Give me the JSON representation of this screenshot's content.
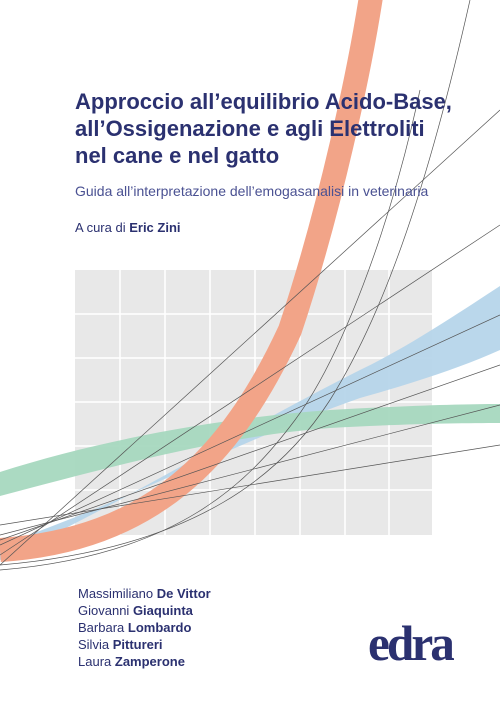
{
  "book": {
    "title_lines": [
      "Approccio all’equilibrio Acido-Base,",
      "all’Ossigenazione e agli Elettroliti",
      "nel cane e nel gatto"
    ],
    "subtitle": "Guida all’interpretazione dell’emogasanalisi in veterinaria",
    "editor_prefix": "A cura di",
    "editor_name": "Eric Zini"
  },
  "authors": [
    {
      "first": "Massimiliano",
      "last": "De Vittor"
    },
    {
      "first": "Giovanni",
      "last": "Giaquinta"
    },
    {
      "first": "Barbara",
      "last": "Lombardo"
    },
    {
      "first": "Silvia",
      "last": "Pittureri"
    },
    {
      "first": "Laura",
      "last": "Zamperone"
    }
  ],
  "publisher": {
    "logo_text": "edra"
  },
  "colors": {
    "title": "#2b3170",
    "subtitle": "#4a5192",
    "salmon_band": "#f2a488",
    "blue_band": "#b6d5ea",
    "green_band": "#a6d8bf",
    "grid_fill": "#e8e8e8",
    "logo": "#2b3170"
  }
}
